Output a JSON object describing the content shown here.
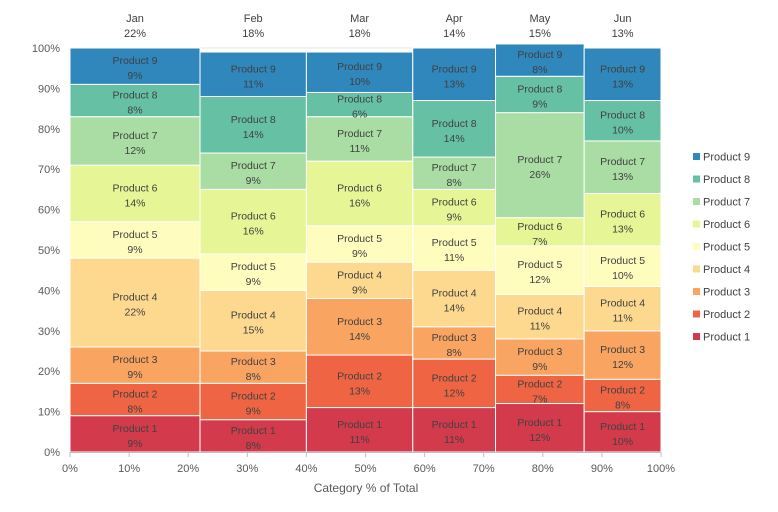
{
  "chart_data": {
    "type": "marimekko",
    "xlabel": "Category % of Total",
    "x_ticks": [
      "0%",
      "10%",
      "20%",
      "30%",
      "40%",
      "50%",
      "60%",
      "70%",
      "80%",
      "90%",
      "100%"
    ],
    "y_ticks": [
      "0%",
      "10%",
      "20%",
      "30%",
      "40%",
      "50%",
      "60%",
      "70%",
      "80%",
      "90%",
      "100%"
    ],
    "xlim": [
      0,
      100
    ],
    "ylim": [
      0,
      100
    ],
    "legend_position": "right",
    "categories": [
      {
        "name": "Jan",
        "share_label": "22%",
        "width": 22
      },
      {
        "name": "Feb",
        "share_label": "18%",
        "width": 18
      },
      {
        "name": "Mar",
        "share_label": "18%",
        "width": 18
      },
      {
        "name": "Apr",
        "share_label": "14%",
        "width": 14
      },
      {
        "name": "May",
        "share_label": "15%",
        "width": 15
      },
      {
        "name": "Jun",
        "share_label": "13%",
        "width": 13
      }
    ],
    "series": [
      {
        "name": "Product 1",
        "color": "#d33b4d",
        "values": [
          9,
          8,
          11,
          11,
          12,
          10
        ]
      },
      {
        "name": "Product 2",
        "color": "#ef6544",
        "values": [
          8,
          9,
          13,
          12,
          7,
          8
        ]
      },
      {
        "name": "Product 3",
        "color": "#faa461",
        "values": [
          9,
          8,
          14,
          8,
          9,
          12
        ]
      },
      {
        "name": "Product 4",
        "color": "#fdd990",
        "values": [
          22,
          15,
          9,
          14,
          11,
          11
        ]
      },
      {
        "name": "Product 5",
        "color": "#fefdbe",
        "values": [
          9,
          9,
          9,
          11,
          12,
          10
        ]
      },
      {
        "name": "Product 6",
        "color": "#e6f595",
        "values": [
          14,
          16,
          16,
          9,
          7,
          13
        ]
      },
      {
        "name": "Product 7",
        "color": "#aadda4",
        "values": [
          12,
          9,
          11,
          8,
          26,
          13
        ]
      },
      {
        "name": "Product 8",
        "color": "#66c1a4",
        "values": [
          8,
          14,
          6,
          14,
          9,
          10
        ]
      },
      {
        "name": "Product 9",
        "color": "#2f87bc",
        "values": [
          9,
          11,
          10,
          13,
          8,
          13
        ]
      }
    ]
  }
}
